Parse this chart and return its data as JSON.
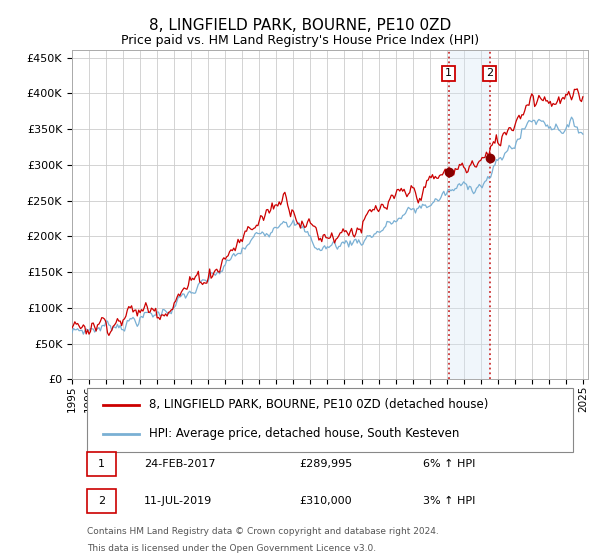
{
  "title": "8, LINGFIELD PARK, BOURNE, PE10 0ZD",
  "subtitle": "Price paid vs. HM Land Registry's House Price Index (HPI)",
  "ylabel_vals": [
    0,
    50000,
    100000,
    150000,
    200000,
    250000,
    300000,
    350000,
    400000,
    450000
  ],
  "ylim": [
    0,
    460000
  ],
  "x_start_year": 1995,
  "x_end_year": 2025,
  "purchase1_date": "24-FEB-2017",
  "purchase1_price": 289995,
  "purchase1_year": 2017.12,
  "purchase2_date": "11-JUL-2019",
  "purchase2_price": 310000,
  "purchase2_year": 2019.53,
  "hpi_line_color": "#7ab0d4",
  "price_line_color": "#cc0000",
  "marker_color": "#880000",
  "vline_color": "#cc3333",
  "shade_color": "#d6e8f5",
  "legend_label1": "8, LINGFIELD PARK, BOURNE, PE10 0ZD (detached house)",
  "legend_label2": "HPI: Average price, detached house, South Kesteven",
  "footnote1": "Contains HM Land Registry data © Crown copyright and database right 2024.",
  "footnote2": "This data is licensed under the Open Government Licence v3.0.",
  "grid_color": "#cccccc",
  "background_color": "#ffffff",
  "title_fontsize": 11,
  "subtitle_fontsize": 9,
  "axis_fontsize": 8,
  "legend_fontsize": 8.5
}
